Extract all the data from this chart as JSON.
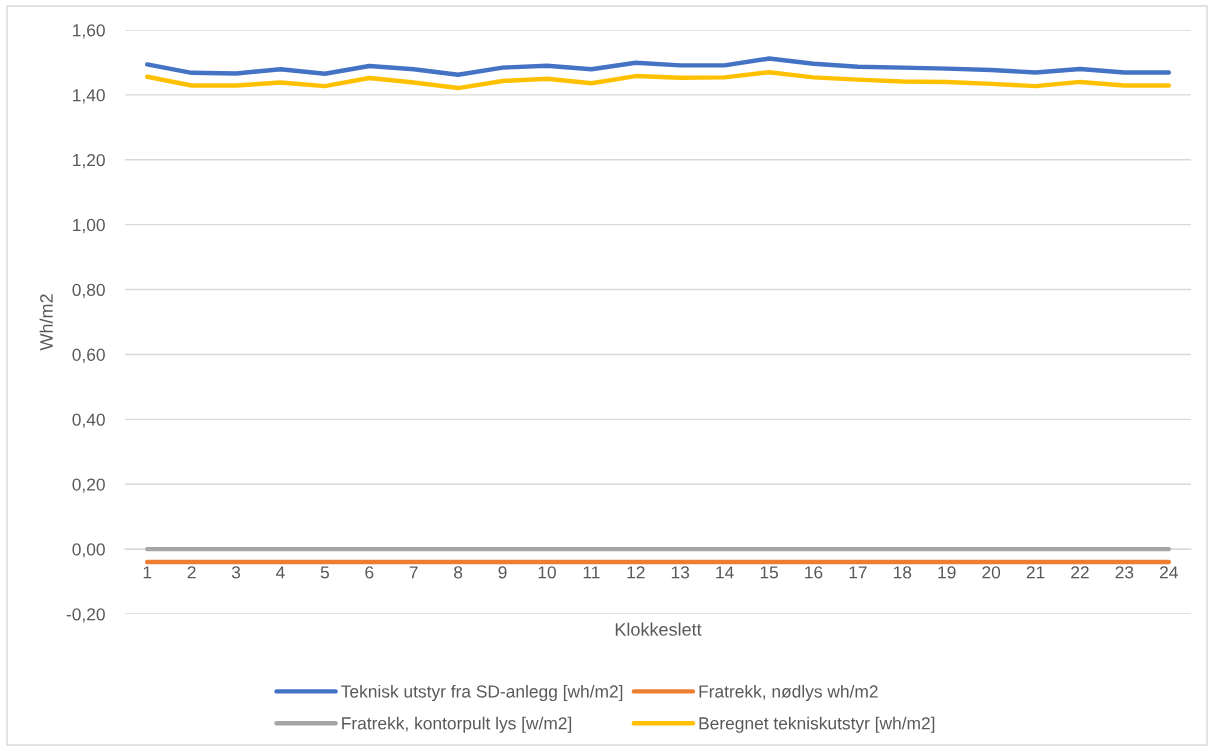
{
  "chart_data": {
    "type": "line",
    "xlabel": "Klokkeslett",
    "ylabel": "Wh/m2",
    "categories": [
      "1",
      "2",
      "3",
      "4",
      "5",
      "6",
      "7",
      "8",
      "9",
      "10",
      "11",
      "12",
      "13",
      "14",
      "15",
      "16",
      "17",
      "18",
      "19",
      "20",
      "21",
      "22",
      "23",
      "24"
    ],
    "series": [
      {
        "name": "Teknisk utstyr fra SD-anlegg [wh/m2]",
        "color": "#4472c4",
        "values": [
          1.494,
          1.468,
          1.466,
          1.479,
          1.465,
          1.489,
          1.479,
          1.462,
          1.484,
          1.49,
          1.479,
          1.499,
          1.491,
          1.491,
          1.512,
          1.496,
          1.487,
          1.484,
          1.481,
          1.477,
          1.469,
          1.48,
          1.469,
          1.469
        ]
      },
      {
        "name": "Fratrekk, nødlys wh/m2",
        "color": "#ed7d31",
        "values": [
          -0.04,
          -0.04,
          -0.04,
          -0.04,
          -0.04,
          -0.04,
          -0.04,
          -0.04,
          -0.04,
          -0.04,
          -0.04,
          -0.04,
          -0.04,
          -0.04,
          -0.04,
          -0.04,
          -0.04,
          -0.04,
          -0.04,
          -0.04,
          -0.04,
          -0.04,
          -0.04,
          -0.04
        ]
      },
      {
        "name": "Fratrekk, kontorpult lys [w/m2]",
        "color": "#a5a5a5",
        "values": [
          0,
          0,
          0,
          0,
          0,
          0,
          0,
          0,
          0,
          0,
          0,
          0,
          0,
          0,
          0,
          0,
          0,
          0,
          0,
          0,
          0,
          0,
          0,
          0
        ]
      },
      {
        "name": "Beregnet tekniskutstyr [wh/m2]",
        "color": "#ffc000",
        "values": [
          1.456,
          1.429,
          1.429,
          1.438,
          1.427,
          1.452,
          1.438,
          1.421,
          1.443,
          1.45,
          1.436,
          1.458,
          1.453,
          1.454,
          1.47,
          1.454,
          1.447,
          1.441,
          1.44,
          1.434,
          1.427,
          1.44,
          1.429,
          1.429
        ]
      }
    ],
    "ylim": [
      -0.2,
      1.6
    ],
    "yticks": [
      {
        "value": -0.2,
        "label": "-0,20"
      },
      {
        "value": 0,
        "label": "0,00"
      },
      {
        "value": 0.2,
        "label": "0,20"
      },
      {
        "value": 0.4,
        "label": "0,40"
      },
      {
        "value": 0.6,
        "label": "0,60"
      },
      {
        "value": 0.8,
        "label": "0,80"
      },
      {
        "value": 1.0,
        "label": "1,00"
      },
      {
        "value": 1.2,
        "label": "1,20"
      },
      {
        "value": 1.4,
        "label": "1,40"
      },
      {
        "value": 1.6,
        "label": "1,60"
      }
    ],
    "grid": "y",
    "legend": "bottom",
    "line_style": "solid"
  }
}
